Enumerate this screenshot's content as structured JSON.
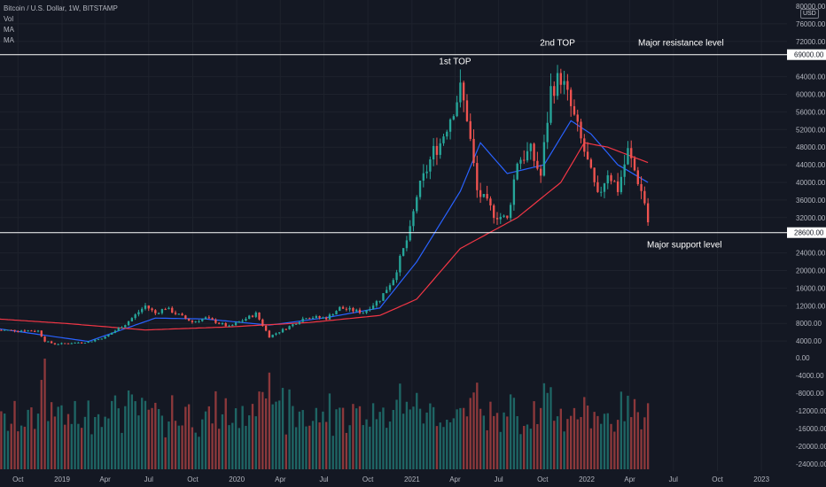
{
  "chart_data": {
    "type": "candlestick",
    "title": "Bitcoin / U.S. Dollar, 1W, BITSTAMP",
    "legend": [
      "Vol",
      "MA",
      "MA"
    ],
    "currency": "USD",
    "price_axis": {
      "ylim": [
        0,
        80000
      ],
      "ticks": [
        4000,
        8000,
        12000,
        16000,
        20000,
        24000,
        32000,
        36000,
        40000,
        44000,
        48000,
        52000,
        56000,
        60000,
        64000,
        72000,
        76000
      ],
      "tick_labels": [
        "4000.00",
        "8000.00",
        "12000.00",
        "16000.00",
        "20000.00",
        "24000.00",
        "32000.00",
        "36000.00",
        "40000.00",
        "44000.00",
        "48000.00",
        "52000.00",
        "56000.00",
        "60000.00",
        "64000.00",
        "72000.00",
        "76000.00"
      ],
      "top_label": "80000.00"
    },
    "volume_axis": {
      "ticks": [
        0,
        -4000,
        -8000,
        -12000,
        -16000,
        -20000,
        -24000
      ],
      "tick_labels": [
        "0.00",
        "-4000.00",
        "-8000.00",
        "-12000.00",
        "-16000.00",
        "-20000.00",
        "-24000.00"
      ]
    },
    "x_axis": {
      "tick_labels": [
        "Oct",
        "2019",
        "Apr",
        "Jul",
        "Oct",
        "2020",
        "Apr",
        "Jul",
        "Oct",
        "2021",
        "Apr",
        "Jul",
        "Oct",
        "2022",
        "Apr",
        "Jul",
        "Oct",
        "2023"
      ],
      "tick_dates": [
        "2018-10",
        "2019-01",
        "2019-04",
        "2019-07",
        "2019-10",
        "2020-01",
        "2020-04",
        "2020-07",
        "2020-10",
        "2021-01",
        "2021-04",
        "2021-07",
        "2021-10",
        "2022-01",
        "2022-04",
        "2022-07",
        "2022-10",
        "2023-01"
      ]
    },
    "horizontal_levels": [
      {
        "value": 69000,
        "label": "69000.00",
        "annotation": "Major resistance level"
      },
      {
        "value": 28600,
        "label": "28600.00",
        "annotation": "Major support level"
      }
    ],
    "annotations": [
      {
        "text": "1st TOP",
        "date": "2021-04",
        "value": 64800
      },
      {
        "text": "2nd TOP",
        "date": "2021-11",
        "value": 69000
      }
    ],
    "price_anchors": [
      [
        "2018-08-20",
        6500
      ],
      [
        "2018-11-12",
        6300
      ],
      [
        "2018-11-26",
        4000
      ],
      [
        "2018-12-17",
        3300
      ],
      [
        "2019-02-25",
        3800
      ],
      [
        "2019-04-01",
        4900
      ],
      [
        "2019-05-13",
        7800
      ],
      [
        "2019-06-24",
        12000
      ],
      [
        "2019-07-15",
        10300
      ],
      [
        "2019-08-05",
        11500
      ],
      [
        "2019-09-30",
        8300
      ],
      [
        "2019-10-28",
        9200
      ],
      [
        "2019-12-16",
        7200
      ],
      [
        "2020-02-10",
        10200
      ],
      [
        "2020-03-09",
        5000
      ],
      [
        "2020-04-20",
        7300
      ],
      [
        "2020-05-25",
        9500
      ],
      [
        "2020-07-06",
        9200
      ],
      [
        "2020-08-03",
        11500
      ],
      [
        "2020-09-21",
        10500
      ],
      [
        "2020-10-26",
        13500
      ],
      [
        "2020-11-23",
        18200
      ],
      [
        "2020-12-28",
        29000
      ],
      [
        "2021-01-11",
        37000
      ],
      [
        "2021-02-15",
        47000
      ],
      [
        "2021-03-01",
        49000
      ],
      [
        "2021-04-12",
        61000
      ],
      [
        "2021-04-26",
        55000
      ],
      [
        "2021-05-17",
        38000
      ],
      [
        "2021-06-21",
        33000
      ],
      [
        "2021-07-19",
        31500
      ],
      [
        "2021-08-09",
        45000
      ],
      [
        "2021-09-06",
        47000
      ],
      [
        "2021-09-27",
        41500
      ],
      [
        "2021-10-18",
        61000
      ],
      [
        "2021-11-08",
        64000
      ],
      [
        "2021-11-29",
        57000
      ],
      [
        "2021-12-27",
        47000
      ],
      [
        "2022-01-24",
        36500
      ],
      [
        "2022-02-14",
        42500
      ],
      [
        "2022-03-07",
        38500
      ],
      [
        "2022-03-28",
        47000
      ],
      [
        "2022-04-18",
        40500
      ],
      [
        "2022-05-02",
        35500
      ],
      [
        "2022-05-09",
        31000
      ]
    ],
    "moving_averages": [
      {
        "color": "#2962ff",
        "anchors": [
          [
            "2018-08-20",
            6800
          ],
          [
            "2019-02-25",
            3900
          ],
          [
            "2019-07-15",
            9200
          ],
          [
            "2019-10-28",
            9000
          ],
          [
            "2020-03-09",
            7600
          ],
          [
            "2020-07-06",
            9300
          ],
          [
            "2020-10-26",
            11500
          ],
          [
            "2021-01-11",
            22000
          ],
          [
            "2021-04-12",
            38000
          ],
          [
            "2021-05-24",
            49000
          ],
          [
            "2021-07-19",
            42000
          ],
          [
            "2021-10-04",
            44000
          ],
          [
            "2021-11-29",
            54000
          ],
          [
            "2022-01-10",
            51000
          ],
          [
            "2022-03-07",
            44000
          ],
          [
            "2022-05-09",
            40000
          ]
        ]
      },
      {
        "color": "#f23645",
        "anchors": [
          [
            "2018-08-20",
            9000
          ],
          [
            "2019-01-07",
            8000
          ],
          [
            "2019-06-24",
            6500
          ],
          [
            "2019-12-16",
            7200
          ],
          [
            "2020-06-01",
            8200
          ],
          [
            "2020-10-26",
            9800
          ],
          [
            "2021-01-11",
            13500
          ],
          [
            "2021-04-12",
            25000
          ],
          [
            "2021-08-09",
            32000
          ],
          [
            "2021-11-08",
            40000
          ],
          [
            "2021-12-27",
            49000
          ],
          [
            "2022-02-14",
            48000
          ],
          [
            "2022-05-09",
            44500
          ]
        ]
      }
    ]
  }
}
